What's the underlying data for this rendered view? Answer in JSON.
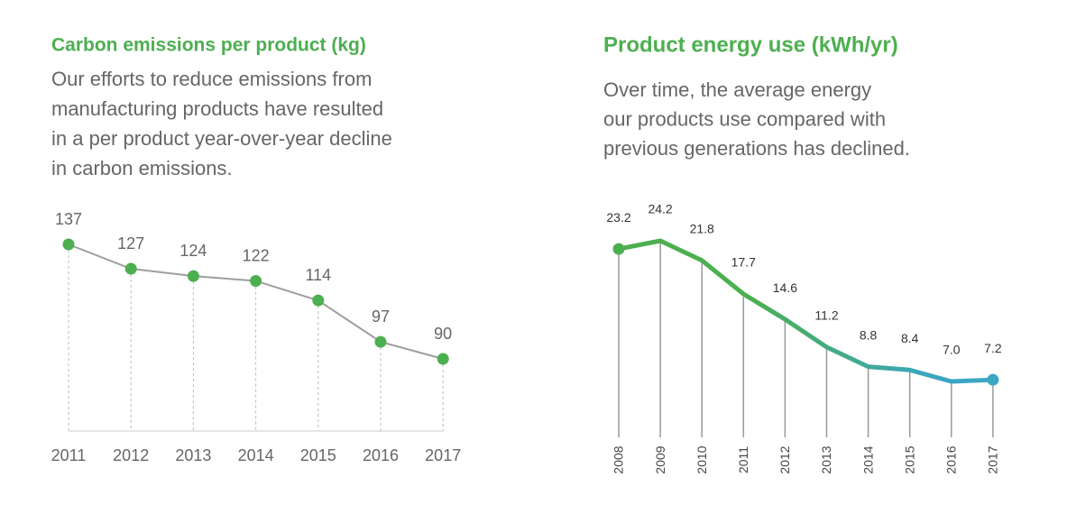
{
  "chart_data": [
    {
      "type": "line",
      "title": "Carbon emissions per product (kg)",
      "subtitle": [
        "Our efforts to reduce emissions from",
        "manufacturing products have resulted",
        "in a per product year-over-year decline",
        "in carbon emissions."
      ],
      "categories": [
        "2011",
        "2012",
        "2013",
        "2014",
        "2015",
        "2016",
        "2017"
      ],
      "values": [
        137,
        127,
        124,
        122,
        114,
        97,
        90
      ],
      "color": "#9e9e9e",
      "marker_color": "#4caf50"
    },
    {
      "type": "line",
      "title": "Product energy use (kWh/yr)",
      "subtitle": [
        "Over time, the average energy",
        "our products use compared with",
        "previous generations has declined."
      ],
      "categories": [
        "2008",
        "2009",
        "2010",
        "2011",
        "2012",
        "2013",
        "2014",
        "2015",
        "2016",
        "2017"
      ],
      "values": [
        23.2,
        24.2,
        21.8,
        17.7,
        14.6,
        11.2,
        8.8,
        8.4,
        7.0,
        7.2
      ],
      "value_labels": [
        "23.2",
        "24.2",
        "21.8",
        "17.7",
        "14.6",
        "11.2",
        "8.8",
        "8.4",
        "7.0",
        "7.2"
      ],
      "color": "#4caf50",
      "end_color": "#3aa6c4"
    }
  ]
}
